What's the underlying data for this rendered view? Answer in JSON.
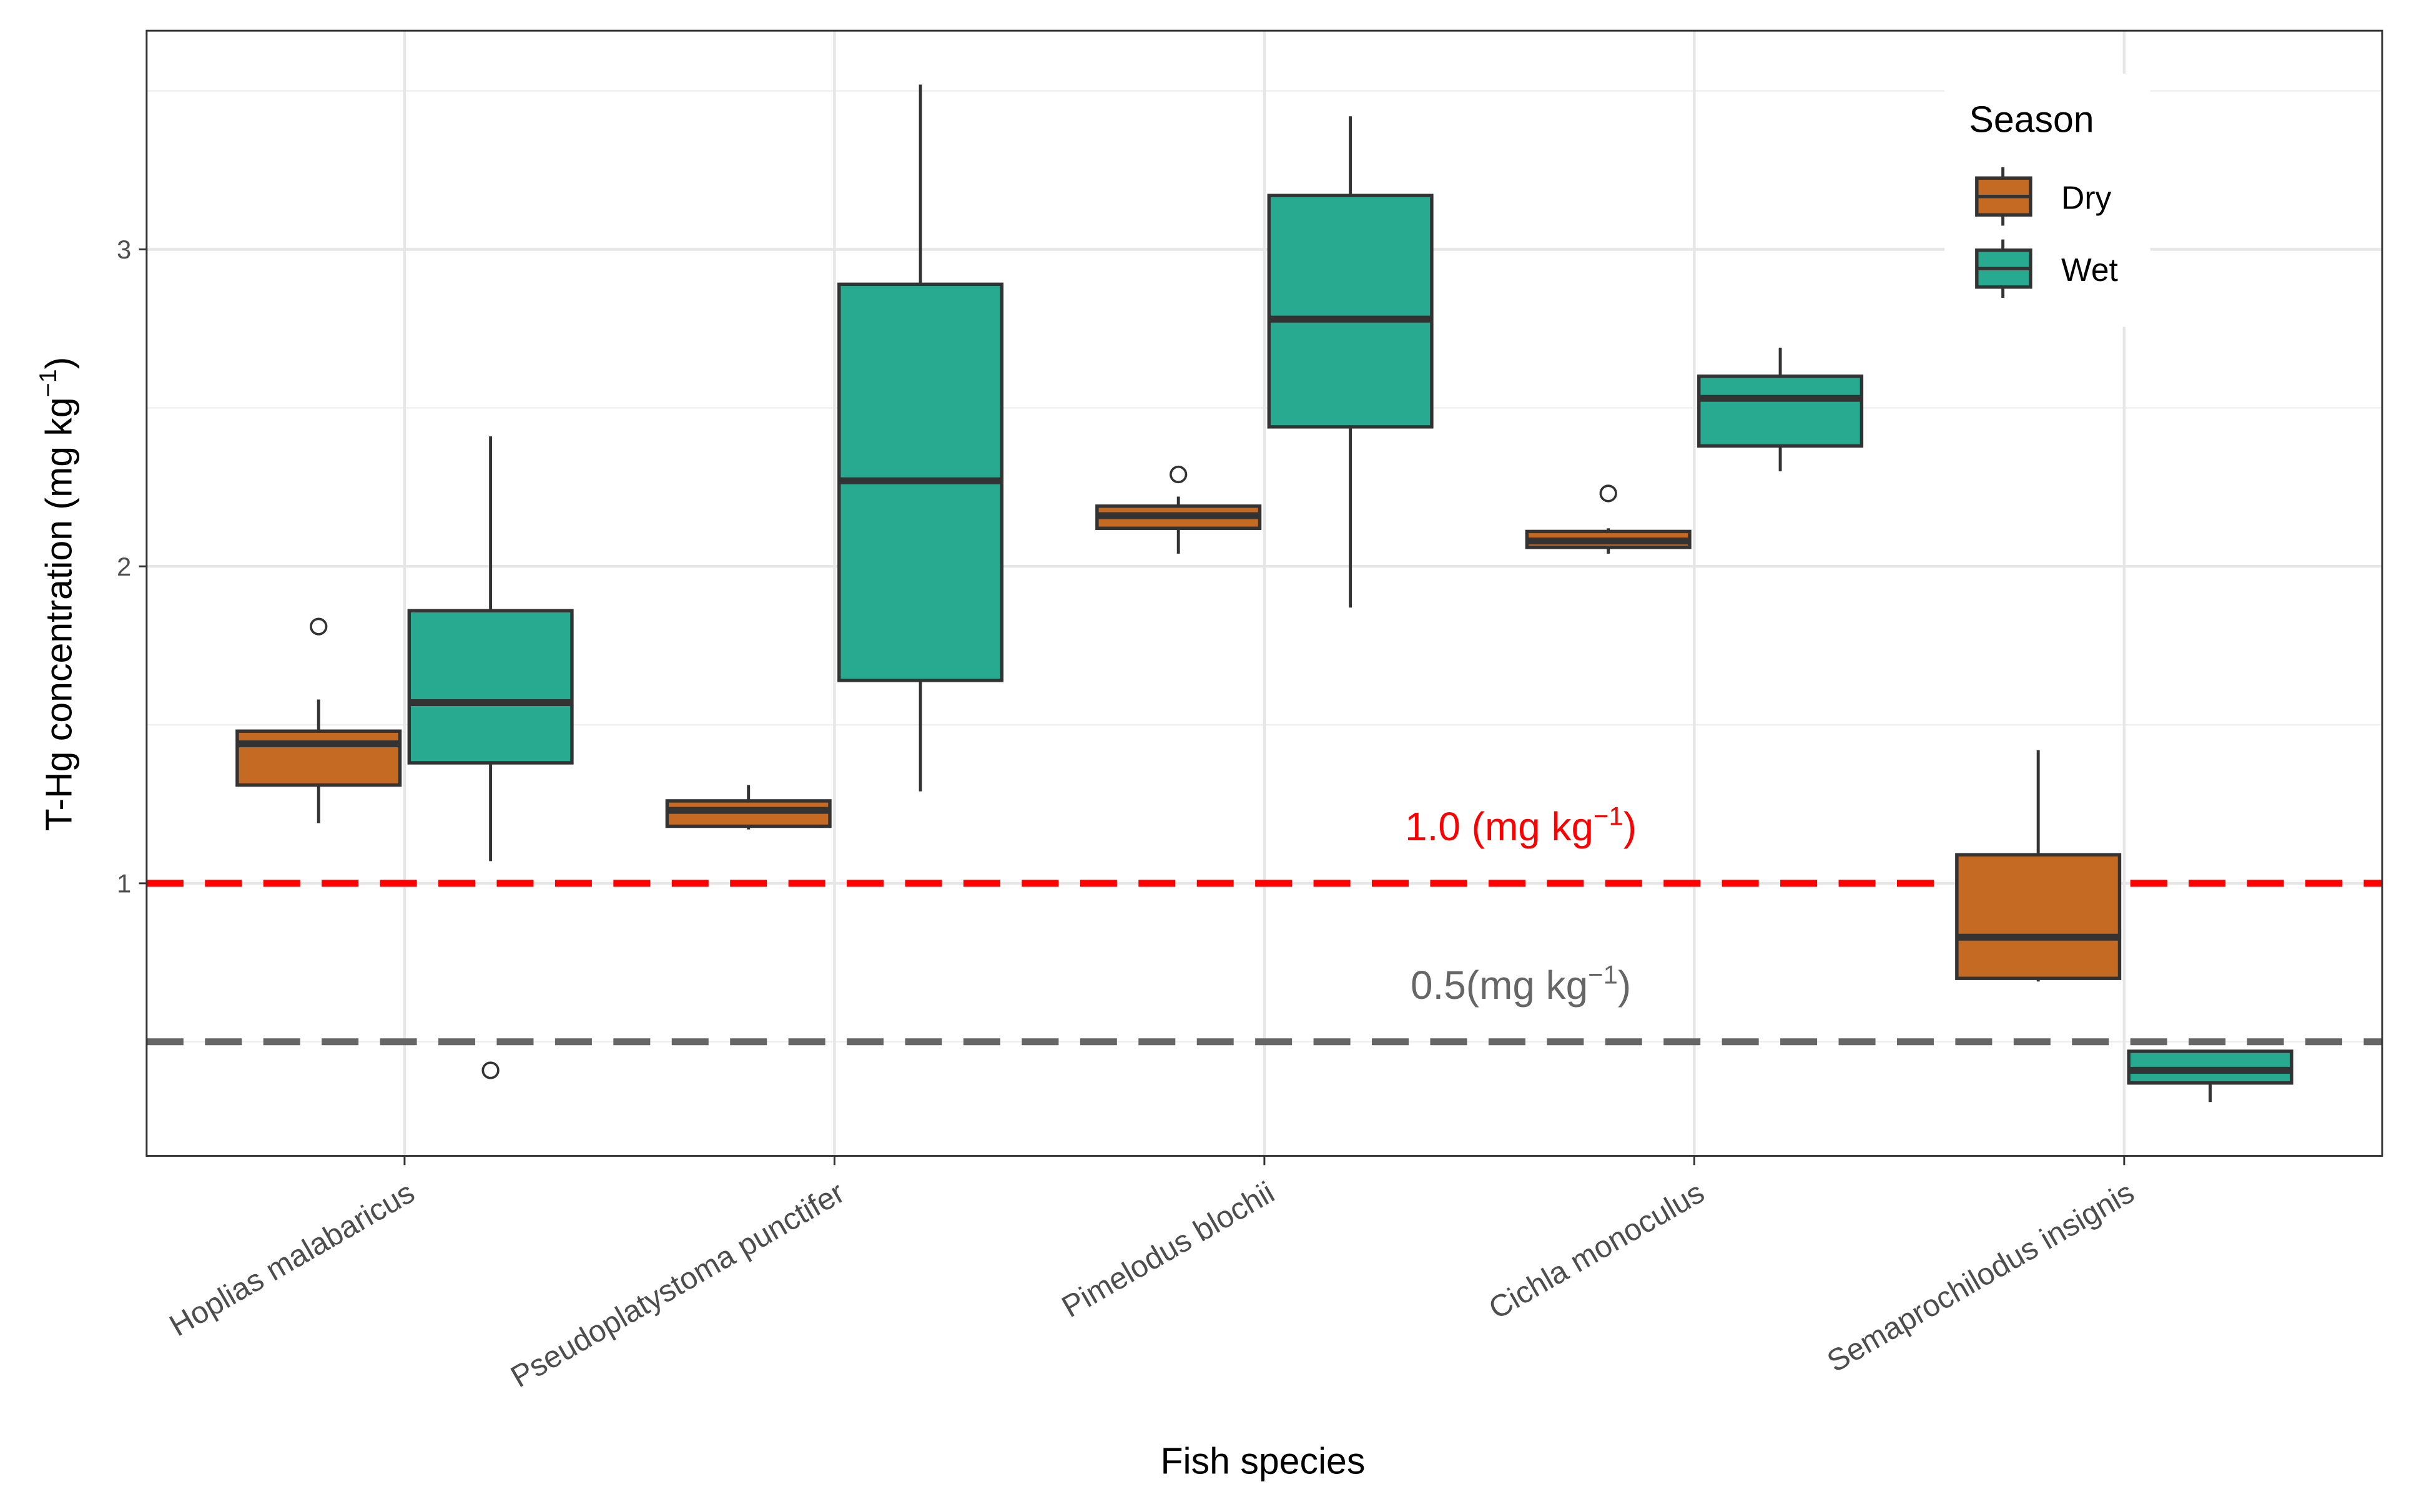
{
  "chart_data": {
    "type": "box",
    "title": "",
    "xlabel": "Fish species",
    "ylabel": "T-Hg concentration (mg kg",
    "ylabel_sup": "−1",
    "ylabel_close": ")",
    "ylim": [
      0.14,
      3.69
    ],
    "yticks": [
      "1",
      "2",
      "3"
    ],
    "ytick_values": [
      1,
      2,
      3
    ],
    "grid": true,
    "categories": [
      "Hoplias malabaricus",
      "Pseudoplatystoma punctifer",
      "Pimelodus blochii",
      "Cichla monoculus",
      "Semaprochilodus insignis"
    ],
    "legend": {
      "title": "Season",
      "placement": "top-right",
      "entries": [
        "Dry",
        "Wet"
      ]
    },
    "colors": {
      "Dry": "#C46A22",
      "Wet": "#27AA90"
    },
    "series": [
      {
        "name": "Dry",
        "boxes": [
          {
            "low": 1.19,
            "q1": 1.31,
            "median": 1.44,
            "q3": 1.48,
            "high": 1.58,
            "outliers": [
              1.81
            ]
          },
          {
            "low": 1.17,
            "q1": 1.18,
            "median": 1.23,
            "q3": 1.26,
            "high": 1.31,
            "outliers": []
          },
          {
            "low": 2.04,
            "q1": 2.12,
            "median": 2.16,
            "q3": 2.19,
            "high": 2.22,
            "outliers": [
              2.29
            ]
          },
          {
            "low": 2.04,
            "q1": 2.06,
            "median": 2.08,
            "q3": 2.11,
            "high": 2.12,
            "outliers": [
              2.23
            ]
          },
          {
            "low": 0.69,
            "q1": 0.7,
            "median": 0.83,
            "q3": 1.09,
            "high": 1.42,
            "outliers": []
          }
        ]
      },
      {
        "name": "Wet",
        "boxes": [
          {
            "low": 1.07,
            "q1": 1.38,
            "median": 1.57,
            "q3": 1.86,
            "high": 2.41,
            "outliers": [
              0.41
            ]
          },
          {
            "low": 1.29,
            "q1": 1.64,
            "median": 2.27,
            "q3": 2.89,
            "high": 3.52,
            "outliers": []
          },
          {
            "low": 1.87,
            "q1": 2.44,
            "median": 2.78,
            "q3": 3.17,
            "high": 3.42,
            "outliers": []
          },
          {
            "low": 2.3,
            "q1": 2.38,
            "median": 2.53,
            "q3": 2.6,
            "high": 2.69,
            "outliers": []
          },
          {
            "low": 0.31,
            "q1": 0.37,
            "median": 0.41,
            "q3": 0.47,
            "high": 0.47,
            "outliers": []
          }
        ]
      }
    ],
    "reference_lines": [
      {
        "value": 1.0,
        "color": "#FF0000",
        "label": "1.0 (mg kg",
        "sup": "−1",
        "close": ")"
      },
      {
        "value": 0.5,
        "color": "#666666",
        "label": "0.5(mg kg",
        "sup": "−1",
        "close": ")"
      }
    ]
  }
}
